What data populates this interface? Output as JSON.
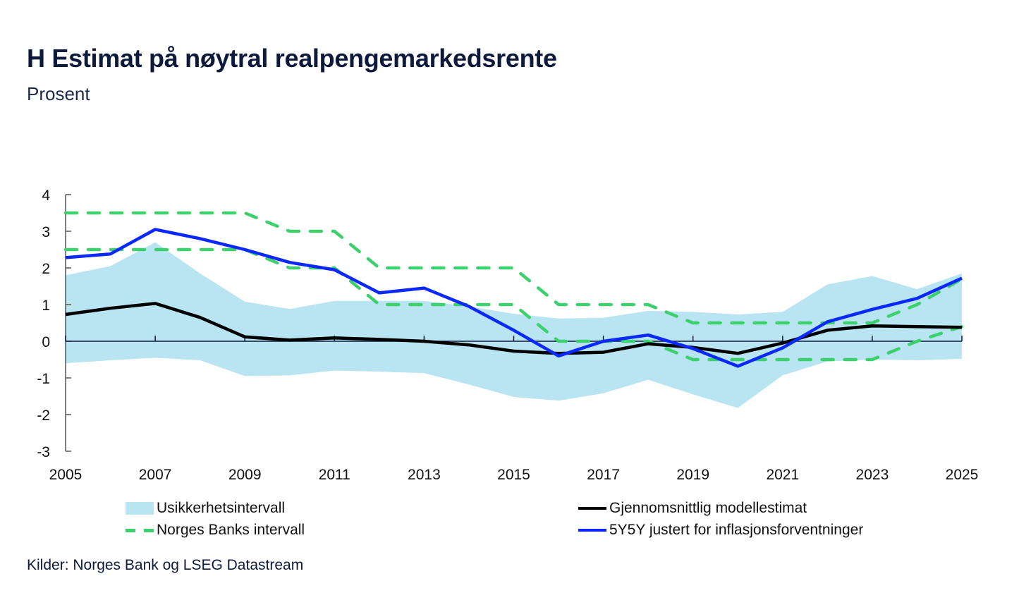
{
  "header": {
    "title": "H Estimat på nøytral realpengemarkedsrente",
    "subtitle": "Prosent"
  },
  "source": "Kilder: Norges Bank og LSEG Datastream",
  "colors": {
    "band": "#b9e5f2",
    "model": "#000000",
    "nb_interval": "#3ecf6e",
    "fiveyfivey": "#0a28ff",
    "axis": "#0d1a3b"
  },
  "chart_data": {
    "type": "line",
    "title": "H Estimat på nøytral realpengemarkedsrente",
    "subtitle": "Prosent",
    "xlabel": "",
    "ylabel": "Prosent",
    "x": [
      2005,
      2006,
      2007,
      2008,
      2009,
      2010,
      2011,
      2012,
      2013,
      2014,
      2015,
      2016,
      2017,
      2018,
      2019,
      2020,
      2021,
      2022,
      2023,
      2024,
      2025
    ],
    "x_tick_labels": [
      "2005",
      "2007",
      "2009",
      "2011",
      "2013",
      "2015",
      "2017",
      "2019",
      "2021",
      "2023",
      "2025"
    ],
    "y_tick_labels": [
      "4",
      "3",
      "2",
      "1",
      "0",
      "-1",
      "-2",
      "-3"
    ],
    "ylim": [
      -3,
      4
    ],
    "xlim": [
      2005,
      2025
    ],
    "grid": false,
    "legend_position": "bottom",
    "band": {
      "name": "Usikkerhetsintervall",
      "upper": [
        1.8,
        2.05,
        2.7,
        1.85,
        1.08,
        0.88,
        1.1,
        1.1,
        1.1,
        0.95,
        0.75,
        0.62,
        0.64,
        0.83,
        0.8,
        0.73,
        0.8,
        1.55,
        1.78,
        1.42,
        1.85
      ],
      "lower": [
        -0.6,
        -0.52,
        -0.45,
        -0.52,
        -0.95,
        -0.93,
        -0.8,
        -0.83,
        -0.87,
        -1.18,
        -1.52,
        -1.62,
        -1.42,
        -1.05,
        -1.45,
        -1.82,
        -0.93,
        -0.55,
        -0.5,
        -0.52,
        -0.48
      ]
    },
    "series": [
      {
        "name": "Gjennomsnittlig modellestimat",
        "style": "solid",
        "color": "#000000",
        "values": [
          0.73,
          0.9,
          1.03,
          0.65,
          0.12,
          0.03,
          0.09,
          0.05,
          0.0,
          -0.1,
          -0.27,
          -0.33,
          -0.3,
          -0.07,
          -0.17,
          -0.33,
          -0.05,
          0.3,
          0.42,
          0.4,
          0.38
        ]
      },
      {
        "name": "5Y5Y justert for inflasjonsforventninger",
        "style": "solid",
        "color": "#0a28ff",
        "values": [
          2.28,
          2.38,
          3.05,
          2.8,
          2.5,
          2.15,
          1.95,
          1.32,
          1.45,
          0.95,
          0.3,
          -0.4,
          0.0,
          0.17,
          -0.2,
          -0.68,
          -0.18,
          0.53,
          0.87,
          1.17,
          1.72
        ]
      },
      {
        "name": "Norges Banks intervall (øvre)",
        "style": "dashed",
        "color": "#3ecf6e",
        "values": [
          3.5,
          3.5,
          3.5,
          3.5,
          3.5,
          3.0,
          3.0,
          2.0,
          2.0,
          2.0,
          2.0,
          1.0,
          1.0,
          1.0,
          0.5,
          0.5,
          0.5,
          0.5,
          0.5,
          1.0,
          1.7
        ]
      },
      {
        "name": "Norges Banks intervall (nedre)",
        "style": "dashed",
        "color": "#3ecf6e",
        "values": [
          2.5,
          2.5,
          2.5,
          2.5,
          2.5,
          2.0,
          2.0,
          1.0,
          1.0,
          1.0,
          1.0,
          0.0,
          0.0,
          0.0,
          -0.5,
          -0.5,
          -0.5,
          -0.5,
          -0.5,
          0.0,
          0.4
        ]
      }
    ],
    "legend": [
      {
        "label": "Usikkerhetsintervall",
        "kind": "area"
      },
      {
        "label": "Gjennomsnittlig modellestimat",
        "kind": "line"
      },
      {
        "label": "Norges Banks intervall",
        "kind": "dashed"
      },
      {
        "label": "5Y5Y justert for inflasjonsforventninger",
        "kind": "line"
      }
    ]
  }
}
